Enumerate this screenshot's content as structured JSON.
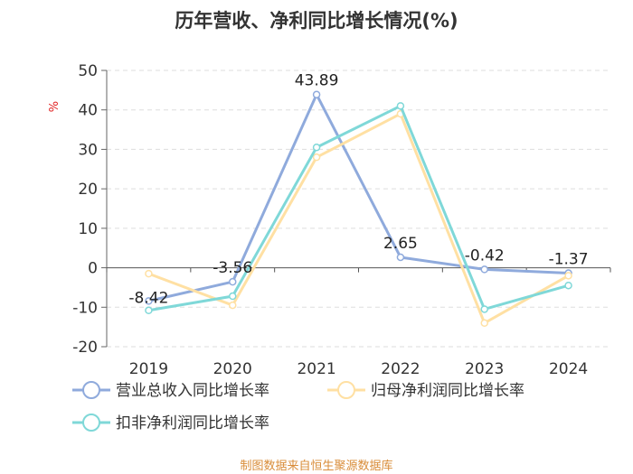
{
  "chart_data": {
    "type": "line",
    "title": "历年营收、净利同比增长情况(%)",
    "ylabel": "%",
    "xlabel": "",
    "categories": [
      "2019",
      "2020",
      "2021",
      "2022",
      "2023",
      "2024"
    ],
    "ylim": [
      -20,
      50
    ],
    "yticks": [
      50,
      40,
      30,
      20,
      10,
      0,
      -10,
      -20
    ],
    "grid": true,
    "legend_position": "bottom",
    "series": [
      {
        "name": "营业总收入同比增长率",
        "color": "#8FAADC",
        "values": [
          -8.42,
          -3.56,
          43.89,
          2.65,
          -0.42,
          -1.37
        ],
        "labels": [
          "-8.42",
          "-3.56",
          "43.89",
          "2.65",
          "-0.42",
          "-1.37"
        ]
      },
      {
        "name": "归母净利润同比增长率",
        "color": "#FFE0A3",
        "values": [
          -1.5,
          -9.5,
          28.0,
          39.0,
          -14.0,
          -2.0
        ]
      },
      {
        "name": "扣非净利润同比增长率",
        "color": "#7FD8D8",
        "values": [
          -10.8,
          -7.2,
          30.5,
          41.0,
          -10.5,
          -4.5
        ]
      }
    ]
  },
  "footer": {
    "source": "制图数据来自恒生聚源数据库"
  }
}
